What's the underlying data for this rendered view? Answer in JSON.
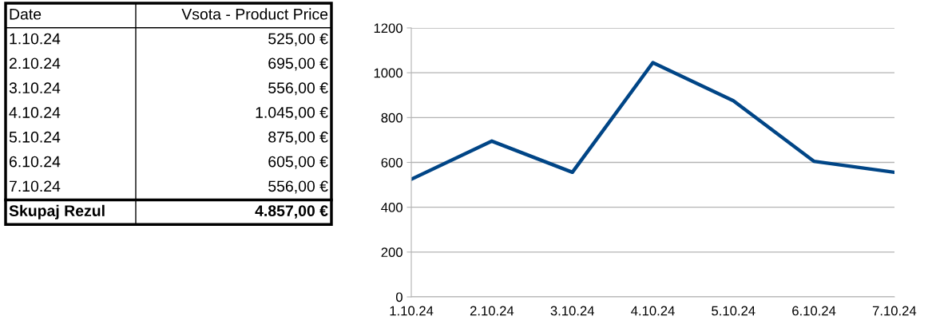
{
  "chart_data": {
    "type": "line",
    "categories": [
      "1.10.24",
      "2.10.24",
      "3.10.24",
      "4.10.24",
      "5.10.24",
      "6.10.24",
      "7.10.24"
    ],
    "values": [
      525,
      695,
      556,
      1045,
      875,
      605,
      556
    ],
    "color": "#004586",
    "ylim": [
      0,
      1200
    ],
    "yticks": [
      0,
      200,
      400,
      600,
      800,
      1000,
      1200
    ],
    "grid": "y",
    "annotations": [
      "Date",
      "Vsota - Product Price",
      "525,00 €",
      "695,00 €",
      "556,00 €",
      "1.045,00 €",
      "875,00 €",
      "605,00 €",
      "556,00 €",
      "Skupaj Rezul",
      "4.857,00 €"
    ]
  }
}
